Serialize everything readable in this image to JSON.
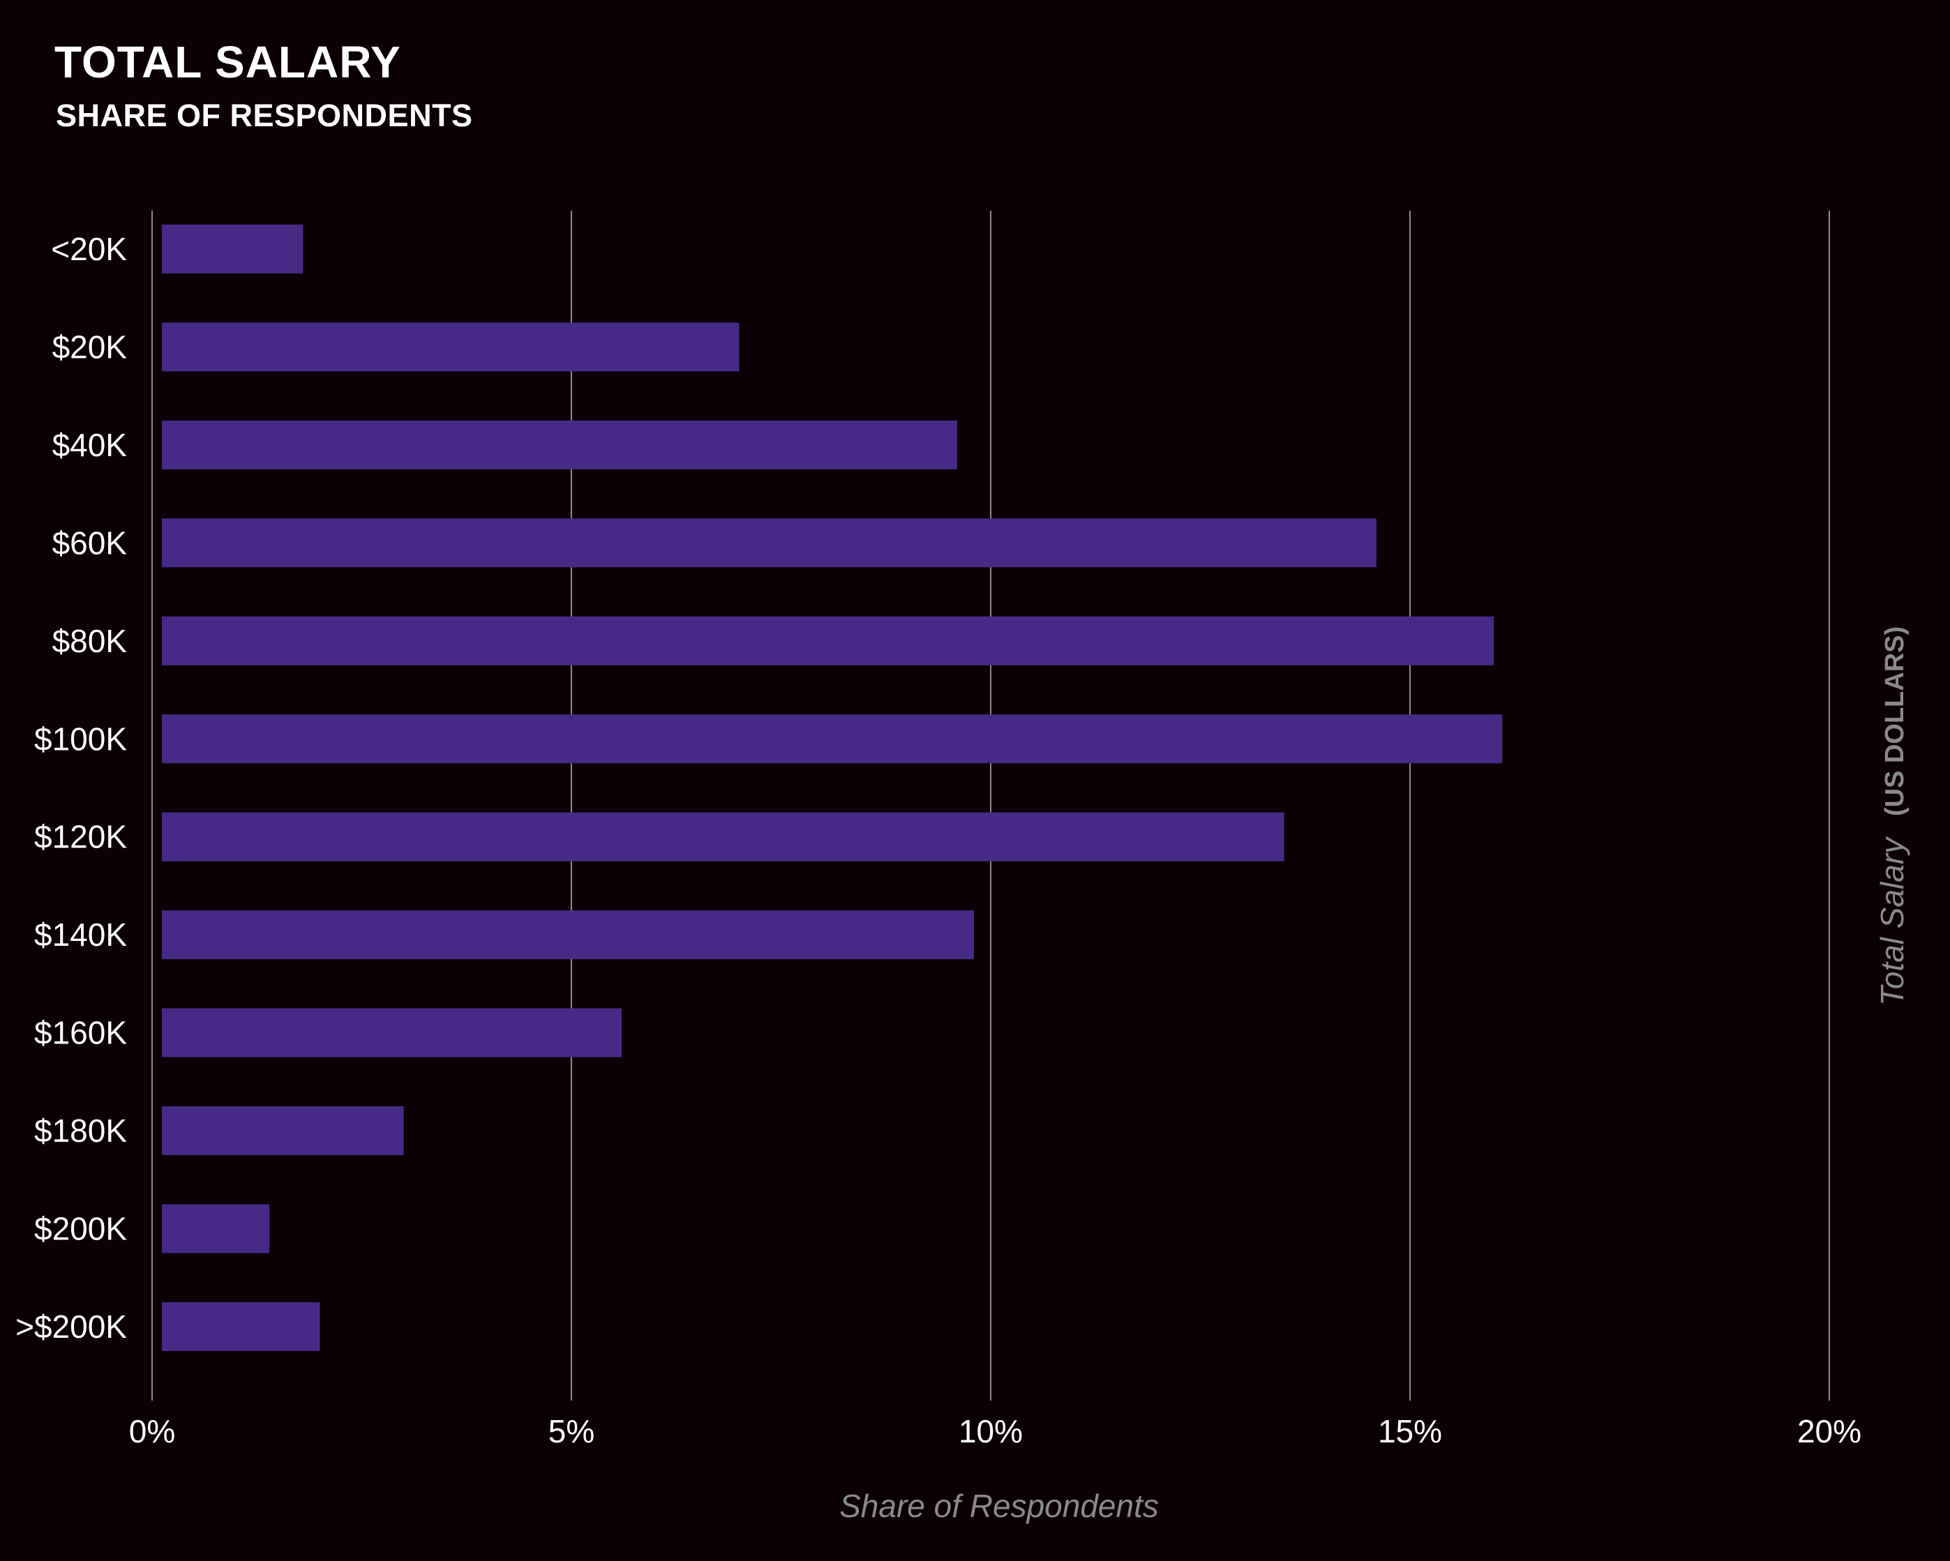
{
  "header": {
    "title": "TOTAL SALARY",
    "subtitle": "SHARE OF RESPONDENTS"
  },
  "chart_data": {
    "type": "bar",
    "orientation": "horizontal",
    "title": "TOTAL SALARY",
    "subtitle": "SHARE OF RESPONDENTS",
    "categories": [
      "<20K",
      "$20K",
      "$40K",
      "$60K",
      "$80K",
      "$100K",
      "$120K",
      "$140K",
      "$160K",
      "$180K",
      "$200K",
      ">$200K"
    ],
    "values": [
      1.8,
      7.0,
      9.6,
      14.6,
      16.0,
      16.1,
      13.5,
      9.8,
      5.6,
      3.0,
      1.4,
      2.0
    ],
    "xlabel": "Share of Respondents",
    "ylabel": "Total Salary",
    "ylabel_suffix": "(US DOLLARS)",
    "xlim": [
      0,
      20
    ],
    "xticks": [
      0,
      5,
      10,
      15,
      20
    ],
    "xtick_labels": [
      "0%",
      "5%",
      "10%",
      "15%",
      "20%"
    ],
    "grid": true,
    "colors": {
      "bar": "#472a86",
      "background": "#0b0003",
      "grid": "#8c8c8c",
      "axis_title": "#8a8a8a"
    }
  }
}
